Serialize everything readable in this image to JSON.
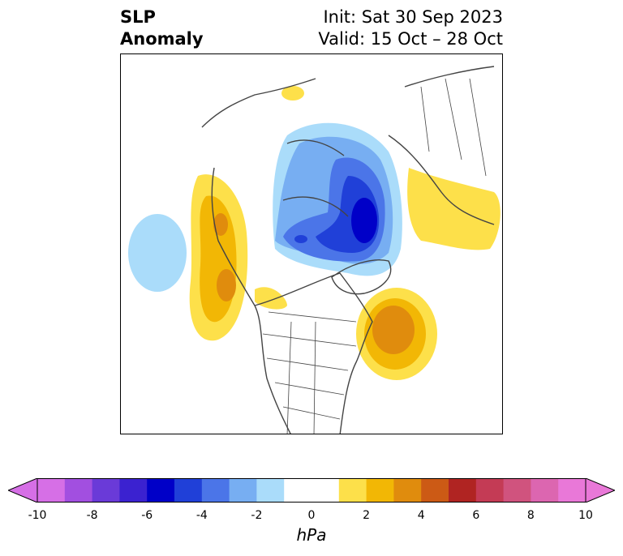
{
  "header": {
    "title_line1": "SLP",
    "title_line2": "Anomaly",
    "init_text": "Init: Sat 30 Sep 2023",
    "valid_text": "Valid: 15 Oct – 28 Oct"
  },
  "colorbar": {
    "unit": "hPa",
    "ticks": [
      "-10",
      "-8",
      "-6",
      "-4",
      "-2",
      "0",
      "2",
      "4",
      "6",
      "8",
      "10"
    ],
    "colors": [
      "#d66fe6",
      "#a24fe0",
      "#6a3ad8",
      "#3b22d0",
      "#0000c8",
      "#2040d8",
      "#4b75e8",
      "#77aef2",
      "#aadcfa",
      "#ffffff",
      "#ffffff",
      "#fde04a",
      "#f2b705",
      "#e08c0d",
      "#cc5a15",
      "#b02422",
      "#c43b55",
      "#d0537e",
      "#dc66b0",
      "#e978d8"
    ]
  },
  "map": {
    "features": [
      "north-america",
      "greenland",
      "eurasia",
      "arctic-ocean"
    ],
    "anomalies": [
      {
        "name": "arctic-low",
        "sign": "negative",
        "peak_hPa": -6
      },
      {
        "name": "pacific-low",
        "sign": "negative",
        "peak_hPa": -2
      },
      {
        "name": "west-coast-high",
        "sign": "positive",
        "peak_hPa": 4
      },
      {
        "name": "north-atlantic-high",
        "sign": "positive",
        "peak_hPa": 4
      },
      {
        "name": "siberian-high",
        "sign": "positive",
        "peak_hPa": 2
      }
    ]
  }
}
